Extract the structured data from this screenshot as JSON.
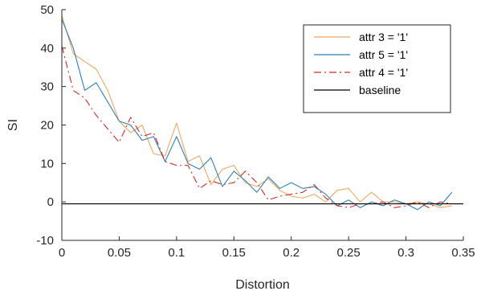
{
  "chart_data": {
    "type": "line",
    "title": "",
    "xlabel": "Distortion",
    "ylabel": "SI",
    "xlim": [
      0,
      0.35
    ],
    "ylim": [
      -10,
      50
    ],
    "xticks": [
      0,
      0.05,
      0.1,
      0.15,
      0.2,
      0.25,
      0.3,
      0.35
    ],
    "xtick_labels": [
      "0",
      "0.05",
      "0.1",
      "0.15",
      "0.2",
      "0.25",
      "0.3",
      "0.35"
    ],
    "yticks": [
      -10,
      0,
      10,
      20,
      30,
      40,
      50
    ],
    "ytick_labels": [
      "-10",
      "0",
      "10",
      "20",
      "30",
      "40",
      "50"
    ],
    "grid": false,
    "legend_position": "top-right",
    "baseline": -0.5,
    "series": [
      {
        "name": "attr 3 = '1'",
        "color": "#f0a860",
        "dash": "solid",
        "x": [
          0,
          0.01,
          0.02,
          0.03,
          0.04,
          0.05,
          0.06,
          0.07,
          0.08,
          0.09,
          0.1,
          0.11,
          0.12,
          0.13,
          0.14,
          0.15,
          0.16,
          0.17,
          0.18,
          0.19,
          0.2,
          0.21,
          0.22,
          0.23,
          0.24,
          0.25,
          0.26,
          0.27,
          0.28,
          0.29,
          0.3,
          0.31,
          0.32,
          0.33,
          0.34
        ],
        "values": [
          48.5,
          38.5,
          36.5,
          34.5,
          29,
          21,
          18,
          20,
          12.5,
          12,
          20.5,
          10.5,
          12,
          4.5,
          8.5,
          9.5,
          5,
          4,
          6,
          3,
          1.5,
          1,
          2,
          0,
          3,
          3.5,
          0,
          2.5,
          0,
          0,
          -0.5,
          0,
          -0.5,
          -1.5,
          -1
        ]
      },
      {
        "name": "attr 5 = '1'",
        "color": "#2e7fb8",
        "dash": "solid",
        "x": [
          0,
          0.01,
          0.02,
          0.03,
          0.04,
          0.05,
          0.06,
          0.07,
          0.08,
          0.09,
          0.1,
          0.11,
          0.12,
          0.13,
          0.14,
          0.15,
          0.16,
          0.17,
          0.18,
          0.19,
          0.2,
          0.21,
          0.22,
          0.23,
          0.24,
          0.25,
          0.26,
          0.27,
          0.28,
          0.29,
          0.3,
          0.31,
          0.32,
          0.33,
          0.34
        ],
        "values": [
          47.5,
          40,
          29,
          31,
          26,
          21,
          20,
          16,
          17,
          10.5,
          17,
          10,
          8.5,
          11.5,
          4,
          8,
          5.5,
          2.5,
          6.5,
          3.5,
          5,
          3.5,
          4,
          2,
          -1,
          0.5,
          -1.5,
          0,
          -1,
          0.5,
          -0.5,
          -2,
          0,
          -1,
          2.5
        ]
      },
      {
        "name": "attr 4 = '1'",
        "color": "#d62728",
        "dash": "dashdot",
        "x": [
          0,
          0.01,
          0.02,
          0.03,
          0.04,
          0.05,
          0.06,
          0.07,
          0.08,
          0.09,
          0.1,
          0.11,
          0.12,
          0.13,
          0.14,
          0.15,
          0.16,
          0.17,
          0.18,
          0.19,
          0.2,
          0.21,
          0.22,
          0.23,
          0.24,
          0.25,
          0.26,
          0.27,
          0.28,
          0.29,
          0.3,
          0.31,
          0.32,
          0.33,
          0.34
        ],
        "values": [
          40.5,
          29,
          27,
          22.5,
          19,
          15.5,
          22,
          17,
          18,
          10.5,
          9.5,
          9.5,
          3.5,
          5.5,
          4.5,
          5,
          8,
          5,
          0.5,
          1.5,
          2,
          2.5,
          4.5,
          1,
          -1,
          -1.5,
          -0.5,
          -0.5,
          0,
          -1.5,
          -1,
          0,
          -1.5,
          0,
          -0.5
        ]
      },
      {
        "name": "baseline",
        "color": "#000000",
        "dash": "solid",
        "x": [
          0,
          0.35
        ],
        "values": [
          -0.5,
          -0.5
        ]
      }
    ]
  }
}
